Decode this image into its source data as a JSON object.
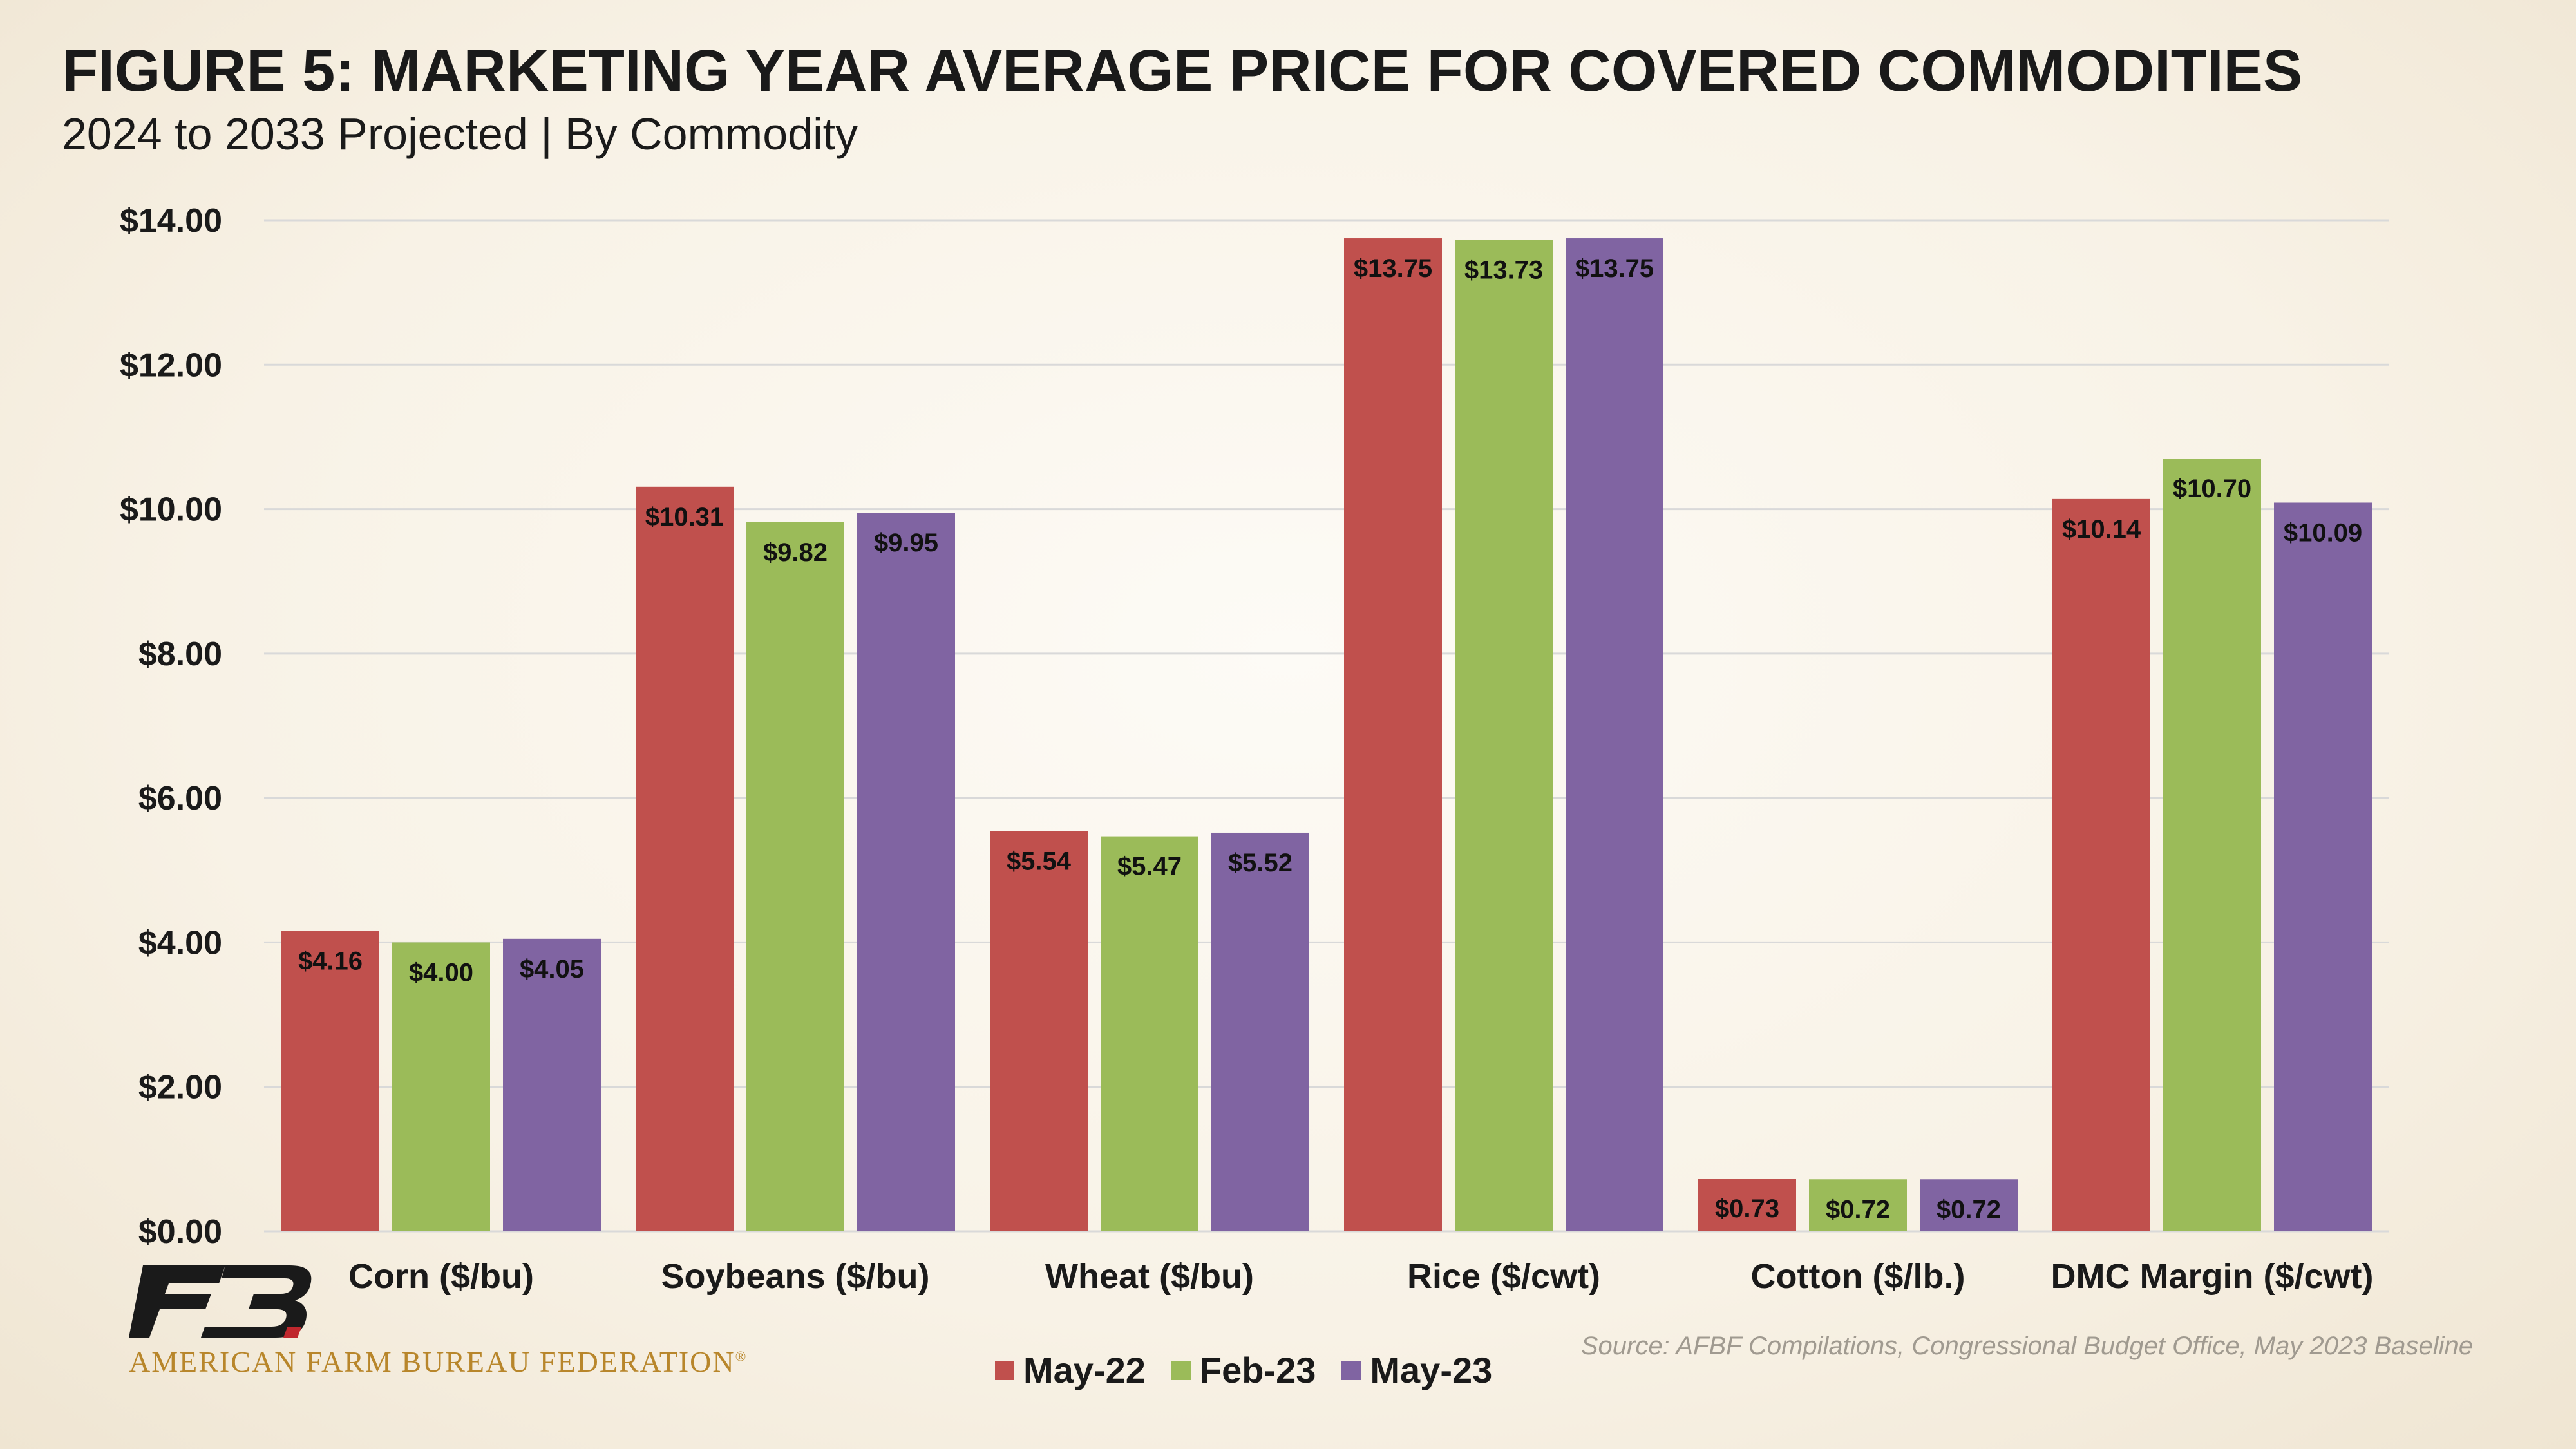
{
  "title": "FIGURE 5: MARKETING YEAR AVERAGE PRICE FOR COVERED COMMODITIES",
  "subtitle": "2024 to 2033 Projected | By Commodity",
  "source": "Source: AFBF Compilations, Congressional Budget Office, May 2023 Baseline",
  "organization": "AMERICAN FARM BUREAU FEDERATION",
  "organization_mark": "®",
  "logo": {
    "icon": "fb-logo-icon",
    "text": "FB"
  },
  "colors": {
    "May-22": "#c0504d",
    "Feb-23": "#9bbb59",
    "May-23": "#8064a2",
    "grid": "#d9d9d9",
    "axis_text": "#1a1a1a",
    "logo_dark": "#1a1a1a",
    "logo_red": "#c0272d",
    "org_text": "#b8862b"
  },
  "chart_data": {
    "type": "bar",
    "title": "FIGURE 5: MARKETING YEAR AVERAGE PRICE FOR COVERED COMMODITIES",
    "subtitle": "2024 to 2033 Projected | By Commodity",
    "categories": [
      "Corn ($/bu)",
      "Soybeans ($/bu)",
      "Wheat ($/bu)",
      "Rice ($/cwt)",
      "Cotton ($/lb.)",
      "DMC Margin ($/cwt)"
    ],
    "series": [
      {
        "name": "May-22",
        "values": [
          4.16,
          10.31,
          5.54,
          13.75,
          0.73,
          10.14
        ],
        "labels": [
          "$4.16",
          "$10.31",
          "$5.54",
          "$13.75",
          "$0.73",
          "$10.14"
        ]
      },
      {
        "name": "Feb-23",
        "values": [
          4.0,
          9.82,
          5.47,
          13.73,
          0.72,
          10.7
        ],
        "labels": [
          "$4.00",
          "$9.82",
          "$5.47",
          "$13.73",
          "$0.72",
          "$10.70"
        ]
      },
      {
        "name": "May-23",
        "values": [
          4.05,
          9.95,
          5.52,
          13.75,
          0.72,
          10.09
        ],
        "labels": [
          "$4.05",
          "$9.95",
          "$5.52",
          "$13.75",
          "$0.72",
          "$10.09"
        ]
      }
    ],
    "ylim": [
      0,
      14
    ],
    "yticks": [
      0,
      2,
      4,
      6,
      8,
      10,
      12,
      14
    ],
    "ytick_labels": [
      "$0.00",
      "$2.00",
      "$4.00",
      "$6.00",
      "$8.00",
      "$10.00",
      "$12.00",
      "$14.00"
    ],
    "xlabel": "",
    "ylabel": "",
    "grid": true,
    "legend": "bottom"
  }
}
